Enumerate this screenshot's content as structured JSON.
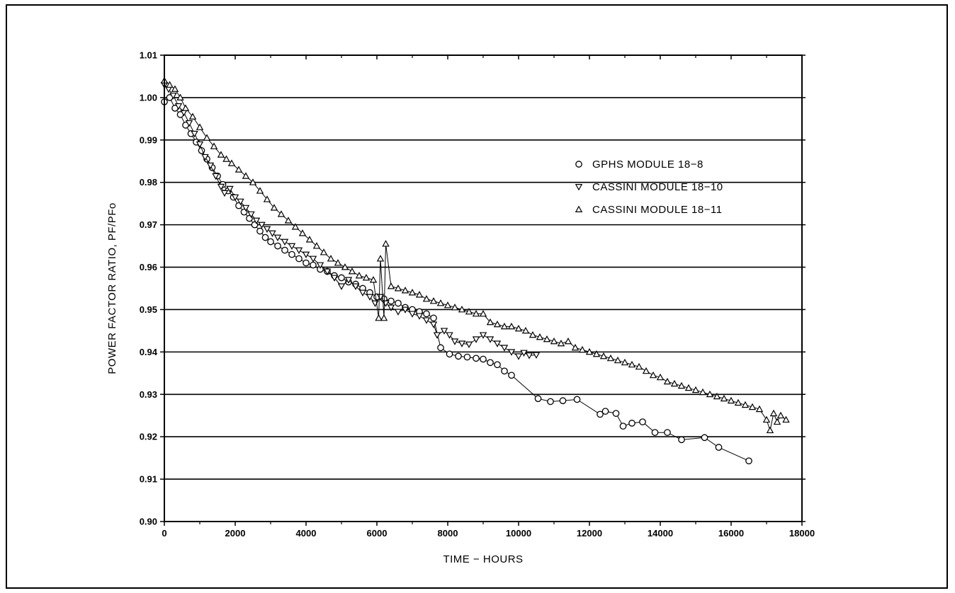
{
  "chart_data": {
    "type": "scatter",
    "title": "",
    "xlabel": "TIME  −  HOURS",
    "ylabel": "POWER FACTOR RATIO, PF/PFo",
    "xlim": [
      0,
      18000
    ],
    "ylim": [
      0.9,
      1.01
    ],
    "x_ticks": [
      "0",
      "2000",
      "4000",
      "6000",
      "8000",
      "10000",
      "12000",
      "14000",
      "16000",
      "18000"
    ],
    "y_ticks": [
      "0.90",
      "0.91",
      "0.92",
      "0.93",
      "0.94",
      "0.95",
      "0.96",
      "0.97",
      "0.98",
      "0.99",
      "1.00",
      "1.01"
    ],
    "grid": "horizontal",
    "legend_position": "right",
    "series": [
      {
        "name": "GPHS MODULE 18−8",
        "marker": "circle",
        "connected": true,
        "points": [
          [
            0,
            0.999
          ],
          [
            150,
            1.0
          ],
          [
            300,
            0.9975
          ],
          [
            450,
            0.996
          ],
          [
            600,
            0.9935
          ],
          [
            750,
            0.9915
          ],
          [
            900,
            0.9895
          ],
          [
            1050,
            0.9875
          ],
          [
            1200,
            0.9855
          ],
          [
            1350,
            0.9835
          ],
          [
            1500,
            0.9815
          ],
          [
            1650,
            0.9795
          ],
          [
            1800,
            0.978
          ],
          [
            1950,
            0.9765
          ],
          [
            2100,
            0.9745
          ],
          [
            2250,
            0.973
          ],
          [
            2400,
            0.9715
          ],
          [
            2550,
            0.97
          ],
          [
            2700,
            0.9685
          ],
          [
            2850,
            0.967
          ],
          [
            3000,
            0.966
          ],
          [
            3200,
            0.965
          ],
          [
            3400,
            0.964
          ],
          [
            3600,
            0.963
          ],
          [
            3800,
            0.962
          ],
          [
            4000,
            0.961
          ],
          [
            4200,
            0.9605
          ],
          [
            4400,
            0.9595
          ],
          [
            4600,
            0.959
          ],
          [
            4800,
            0.958
          ],
          [
            5000,
            0.9575
          ],
          [
            5200,
            0.9565
          ],
          [
            5400,
            0.956
          ],
          [
            5600,
            0.955
          ],
          [
            5800,
            0.954
          ],
          [
            6000,
            0.953
          ],
          [
            6200,
            0.9525
          ],
          [
            6400,
            0.952
          ],
          [
            6600,
            0.9515
          ],
          [
            6800,
            0.9505
          ],
          [
            7000,
            0.95
          ],
          [
            7200,
            0.9495
          ],
          [
            7400,
            0.949
          ],
          [
            7600,
            0.948
          ],
          [
            7800,
            0.941
          ],
          [
            8050,
            0.9395
          ],
          [
            8300,
            0.939
          ],
          [
            8550,
            0.9388
          ],
          [
            8800,
            0.9385
          ],
          [
            9000,
            0.9383
          ],
          [
            9200,
            0.9375
          ],
          [
            9400,
            0.937
          ],
          [
            9600,
            0.9355
          ],
          [
            9800,
            0.9345
          ],
          [
            10550,
            0.929
          ],
          [
            10900,
            0.9283
          ],
          [
            11250,
            0.9285
          ],
          [
            11650,
            0.9288
          ],
          [
            12300,
            0.9253
          ],
          [
            12450,
            0.926
          ],
          [
            12750,
            0.9255
          ],
          [
            12950,
            0.9225
          ],
          [
            13200,
            0.9232
          ],
          [
            13500,
            0.9235
          ],
          [
            13850,
            0.921
          ],
          [
            14200,
            0.921
          ],
          [
            14600,
            0.9193
          ],
          [
            15250,
            0.9198
          ],
          [
            15650,
            0.9175
          ],
          [
            16500,
            0.9143
          ]
        ]
      },
      {
        "name": "CASSINI MODULE 18−10",
        "marker": "triangle-down",
        "connected": true,
        "points": [
          [
            0,
            1.003
          ],
          [
            120,
            1.002
          ],
          [
            250,
            1.0005
          ],
          [
            400,
            0.998
          ],
          [
            550,
            0.9965
          ],
          [
            700,
            0.994
          ],
          [
            850,
            0.9915
          ],
          [
            1000,
            0.989
          ],
          [
            1150,
            0.986
          ],
          [
            1300,
            0.984
          ],
          [
            1450,
            0.9815
          ],
          [
            1600,
            0.979
          ],
          [
            1700,
            0.9775
          ],
          [
            1850,
            0.9785
          ],
          [
            2000,
            0.9765
          ],
          [
            2150,
            0.9755
          ],
          [
            2300,
            0.974
          ],
          [
            2450,
            0.9725
          ],
          [
            2600,
            0.971
          ],
          [
            2750,
            0.97
          ],
          [
            2900,
            0.969
          ],
          [
            3050,
            0.968
          ],
          [
            3200,
            0.967
          ],
          [
            3400,
            0.966
          ],
          [
            3600,
            0.965
          ],
          [
            3800,
            0.964
          ],
          [
            4000,
            0.963
          ],
          [
            4200,
            0.962
          ],
          [
            4400,
            0.9605
          ],
          [
            4600,
            0.959
          ],
          [
            4800,
            0.9575
          ],
          [
            5000,
            0.9555
          ],
          [
            5200,
            0.957
          ],
          [
            5400,
            0.9555
          ],
          [
            5600,
            0.954
          ],
          [
            5800,
            0.953
          ],
          [
            5950,
            0.9515
          ],
          [
            6100,
            0.953
          ],
          [
            6250,
            0.9515
          ],
          [
            6400,
            0.9505
          ],
          [
            6600,
            0.9495
          ],
          [
            6800,
            0.95
          ],
          [
            7000,
            0.949
          ],
          [
            7200,
            0.9485
          ],
          [
            7400,
            0.9475
          ],
          [
            7600,
            0.9465
          ],
          [
            7700,
            0.944
          ],
          [
            7900,
            0.945
          ],
          [
            8050,
            0.944
          ],
          [
            8200,
            0.9425
          ],
          [
            8400,
            0.942
          ],
          [
            8600,
            0.9418
          ],
          [
            8800,
            0.943
          ],
          [
            9000,
            0.944
          ],
          [
            9200,
            0.943
          ],
          [
            9400,
            0.942
          ],
          [
            9600,
            0.941
          ],
          [
            9800,
            0.94
          ],
          [
            10000,
            0.939
          ],
          [
            10150,
            0.9398
          ],
          [
            10300,
            0.9392
          ],
          [
            10500,
            0.9393
          ]
        ]
      },
      {
        "name": "CASSINI MODULE 18−11",
        "marker": "triangle-up",
        "connected": true,
        "points": [
          [
            0,
            1.004
          ],
          [
            150,
            1.003
          ],
          [
            300,
            1.002
          ],
          [
            450,
            1.0
          ],
          [
            600,
            0.9975
          ],
          [
            800,
            0.9955
          ],
          [
            1000,
            0.993
          ],
          [
            1200,
            0.9905
          ],
          [
            1400,
            0.9885
          ],
          [
            1600,
            0.9865
          ],
          [
            1750,
            0.9855
          ],
          [
            1900,
            0.9845
          ],
          [
            2100,
            0.983
          ],
          [
            2300,
            0.9815
          ],
          [
            2500,
            0.98
          ],
          [
            2700,
            0.978
          ],
          [
            2900,
            0.976
          ],
          [
            3100,
            0.974
          ],
          [
            3300,
            0.9725
          ],
          [
            3500,
            0.971
          ],
          [
            3700,
            0.9695
          ],
          [
            3900,
            0.968
          ],
          [
            4100,
            0.9665
          ],
          [
            4300,
            0.965
          ],
          [
            4500,
            0.9635
          ],
          [
            4700,
            0.962
          ],
          [
            4900,
            0.961
          ],
          [
            5100,
            0.96
          ],
          [
            5300,
            0.959
          ],
          [
            5500,
            0.958
          ],
          [
            5700,
            0.9575
          ],
          [
            5900,
            0.957
          ],
          [
            6050,
            0.948
          ],
          [
            6100,
            0.962
          ],
          [
            6200,
            0.948
          ],
          [
            6250,
            0.9655
          ],
          [
            6400,
            0.9555
          ],
          [
            6600,
            0.955
          ],
          [
            6800,
            0.9545
          ],
          [
            7000,
            0.954
          ],
          [
            7200,
            0.9535
          ],
          [
            7400,
            0.9525
          ],
          [
            7600,
            0.952
          ],
          [
            7800,
            0.9515
          ],
          [
            8000,
            0.951
          ],
          [
            8200,
            0.9505
          ],
          [
            8400,
            0.95
          ],
          [
            8600,
            0.9495
          ],
          [
            8800,
            0.949
          ],
          [
            9000,
            0.949
          ],
          [
            9200,
            0.947
          ],
          [
            9400,
            0.9465
          ],
          [
            9600,
            0.946
          ],
          [
            9800,
            0.946
          ],
          [
            10000,
            0.9455
          ],
          [
            10200,
            0.945
          ],
          [
            10400,
            0.944
          ],
          [
            10600,
            0.9435
          ],
          [
            10800,
            0.943
          ],
          [
            11000,
            0.9425
          ],
          [
            11200,
            0.942
          ],
          [
            11400,
            0.9425
          ],
          [
            11600,
            0.941
          ],
          [
            11800,
            0.9405
          ],
          [
            12000,
            0.94
          ],
          [
            12200,
            0.9395
          ],
          [
            12400,
            0.939
          ],
          [
            12600,
            0.9385
          ],
          [
            12800,
            0.938
          ],
          [
            13000,
            0.9375
          ],
          [
            13200,
            0.937
          ],
          [
            13400,
            0.9365
          ],
          [
            13600,
            0.9355
          ],
          [
            13800,
            0.9345
          ],
          [
            14000,
            0.934
          ],
          [
            14200,
            0.933
          ],
          [
            14400,
            0.9325
          ],
          [
            14600,
            0.932
          ],
          [
            14800,
            0.9315
          ],
          [
            15000,
            0.931
          ],
          [
            15200,
            0.9305
          ],
          [
            15400,
            0.93
          ],
          [
            15600,
            0.9295
          ],
          [
            15800,
            0.929
          ],
          [
            16000,
            0.9285
          ],
          [
            16200,
            0.928
          ],
          [
            16400,
            0.9275
          ],
          [
            16600,
            0.927
          ],
          [
            16800,
            0.9265
          ],
          [
            17000,
            0.924
          ],
          [
            17100,
            0.9215
          ],
          [
            17200,
            0.9255
          ],
          [
            17300,
            0.9235
          ],
          [
            17400,
            0.925
          ],
          [
            17550,
            0.924
          ]
        ]
      }
    ]
  }
}
